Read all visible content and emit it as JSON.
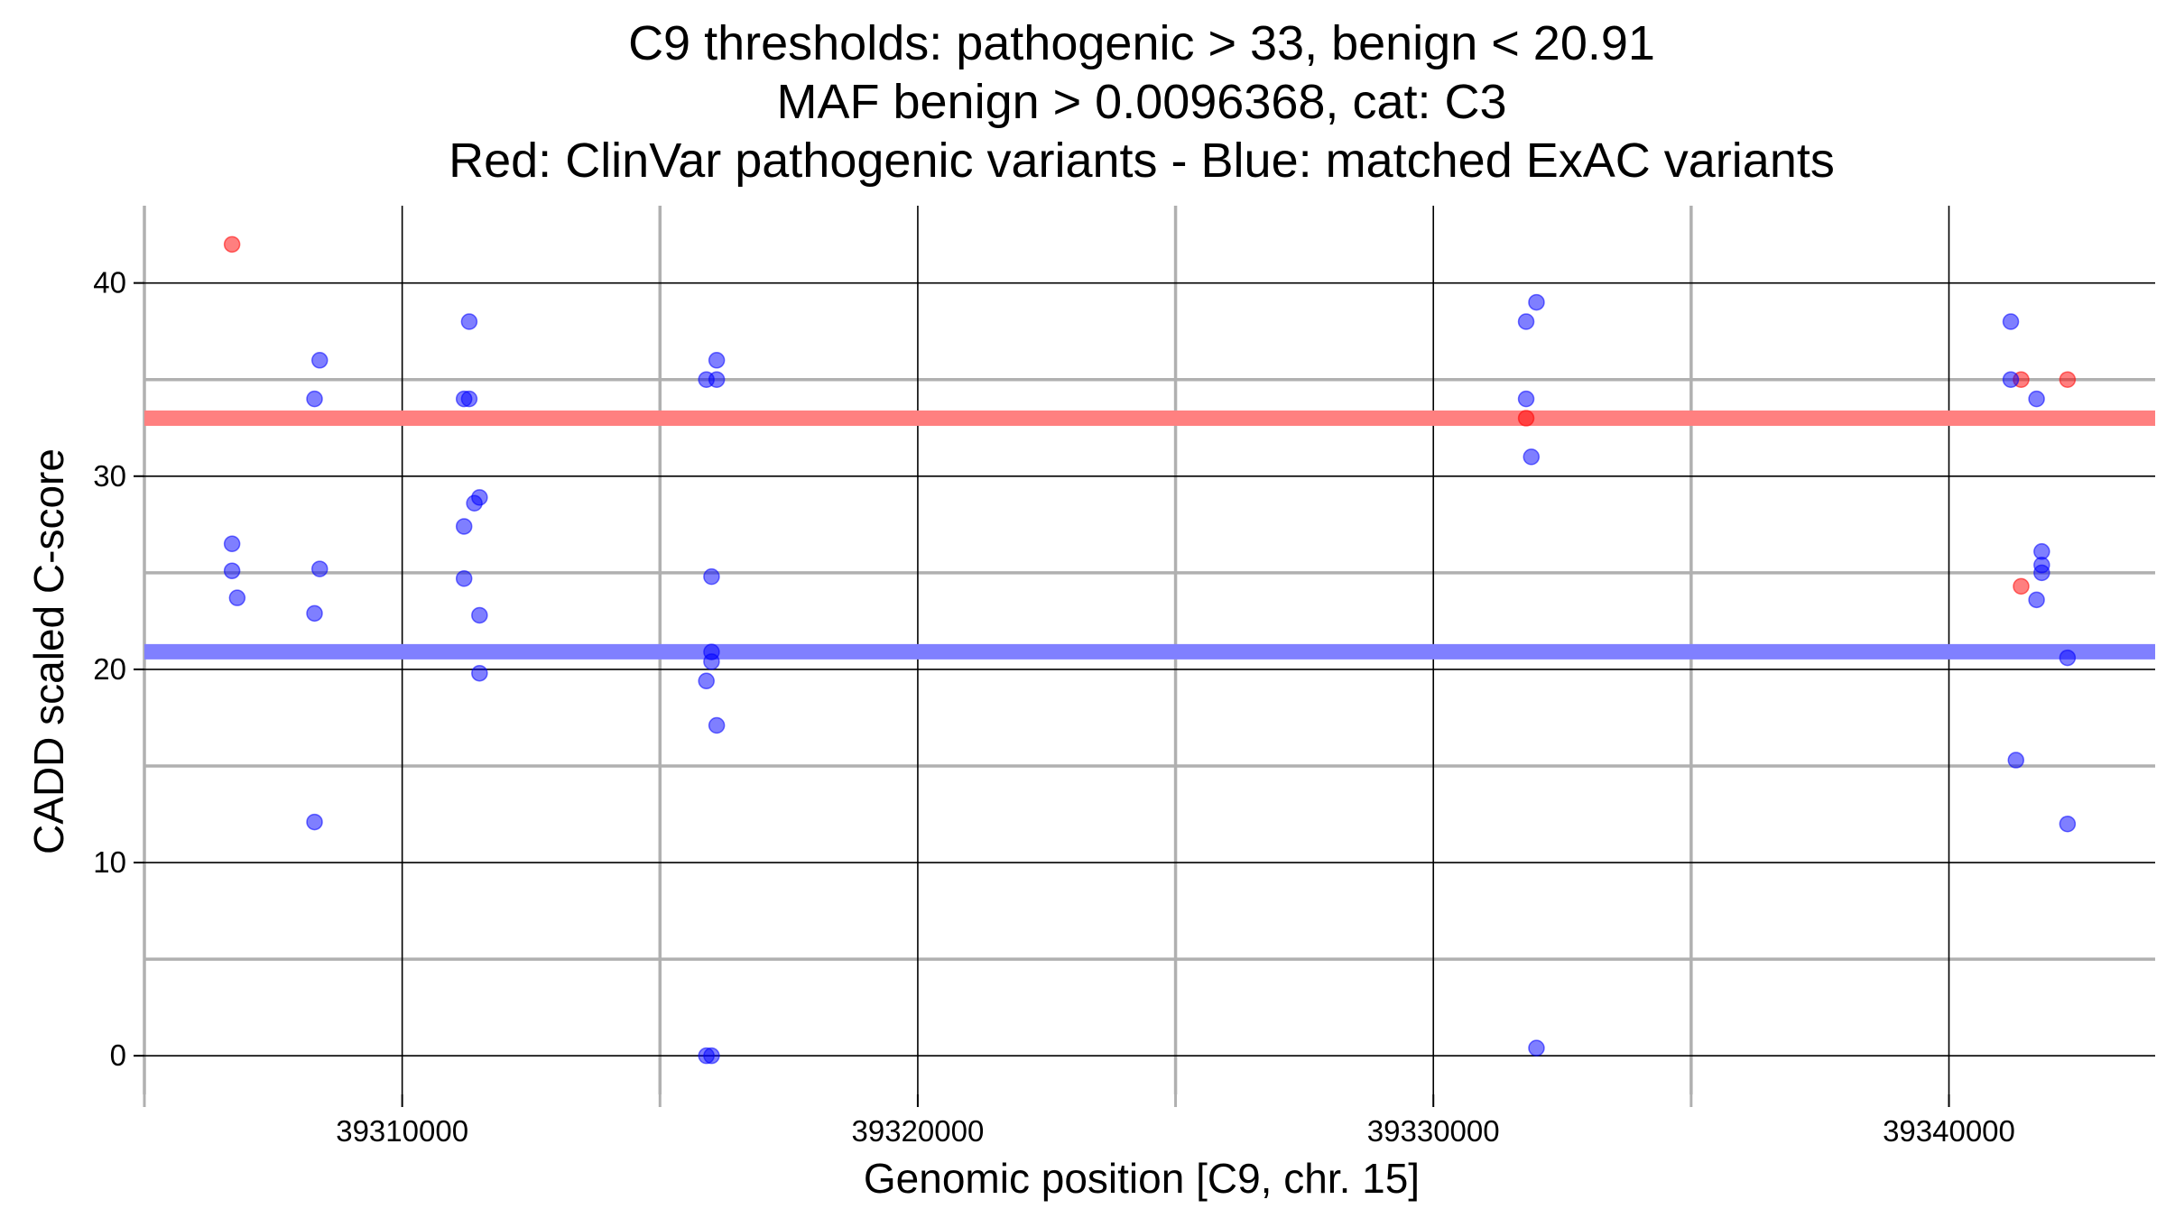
{
  "chart_data": {
    "type": "scatter",
    "title_lines": [
      "C9 thresholds: pathogenic > 33, benign < 20.91",
      "MAF benign > 0.0096368, cat: C3",
      "Red: ClinVar pathogenic variants - Blue: matched ExAC variants"
    ],
    "xlabel": "Genomic position [C9, chr. 15]",
    "ylabel": "CADD scaled C-score",
    "xlim": [
      39305000,
      39344000
    ],
    "ylim": [
      -2,
      44
    ],
    "x_major_ticks": [
      39310000,
      39320000,
      39330000,
      39340000
    ],
    "x_minor_grid": [
      39305000,
      39315000,
      39325000,
      39335000
    ],
    "y_major_ticks": [
      0,
      10,
      20,
      30,
      40
    ],
    "y_minor_grid": [
      5,
      15,
      25,
      35
    ],
    "grid": true,
    "thresholds": [
      {
        "name": "pathogenic",
        "value": 33,
        "color": "#ff8080"
      },
      {
        "name": "benign",
        "value": 20.91,
        "color": "#8080ff"
      }
    ],
    "series": [
      {
        "color": "#ff0000",
        "points": [
          [
            39306700,
            42.0
          ],
          [
            39331800,
            33.0
          ],
          [
            39341400,
            35.0
          ],
          [
            39341400,
            24.3
          ],
          [
            39342300,
            35.0
          ]
        ]
      },
      {
        "color": "#0000ff",
        "points": [
          [
            39306700,
            26.5
          ],
          [
            39306700,
            25.1
          ],
          [
            39306800,
            23.7
          ],
          [
            39308300,
            34.0
          ],
          [
            39308400,
            36.0
          ],
          [
            39308400,
            25.2
          ],
          [
            39308300,
            22.9
          ],
          [
            39308300,
            12.1
          ],
          [
            39311300,
            38.0
          ],
          [
            39311200,
            34.0
          ],
          [
            39311300,
            34.0
          ],
          [
            39311500,
            28.9
          ],
          [
            39311400,
            28.6
          ],
          [
            39311200,
            27.4
          ],
          [
            39311200,
            24.7
          ],
          [
            39311500,
            22.8
          ],
          [
            39311500,
            19.8
          ],
          [
            39315900,
            35.0
          ],
          [
            39316100,
            36.0
          ],
          [
            39316100,
            35.0
          ],
          [
            39316000,
            24.8
          ],
          [
            39316000,
            20.9
          ],
          [
            39316000,
            20.4
          ],
          [
            39315900,
            19.4
          ],
          [
            39316100,
            17.1
          ],
          [
            39315900,
            0.0
          ],
          [
            39316000,
            0.0
          ],
          [
            39332000,
            39.0
          ],
          [
            39331800,
            38.0
          ],
          [
            39331800,
            34.0
          ],
          [
            39331900,
            31.0
          ],
          [
            39332000,
            0.4
          ],
          [
            39341200,
            38.0
          ],
          [
            39341200,
            35.0
          ],
          [
            39341700,
            34.0
          ],
          [
            39341800,
            26.1
          ],
          [
            39341800,
            25.4
          ],
          [
            39341800,
            25.0
          ],
          [
            39341700,
            23.6
          ],
          [
            39342300,
            20.6
          ],
          [
            39341300,
            15.3
          ],
          [
            39342300,
            12.0
          ]
        ]
      }
    ]
  }
}
